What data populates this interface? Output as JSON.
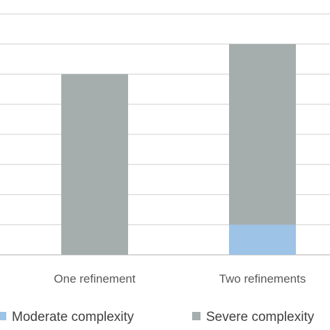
{
  "chart_data": {
    "type": "bar",
    "stacked": true,
    "title": "",
    "xlabel": "",
    "ylabel": "",
    "categories": [
      "One refinement",
      "Two refinements"
    ],
    "series": [
      {
        "name": "Moderate complexity",
        "color": "#9dc3e6",
        "values": [
          0,
          1
        ]
      },
      {
        "name": "Severe complexity",
        "color": "#a5adad",
        "values": [
          6,
          6
        ]
      }
    ],
    "ylim": [
      0,
      8
    ],
    "grid": true,
    "legend_position": "bottom"
  }
}
